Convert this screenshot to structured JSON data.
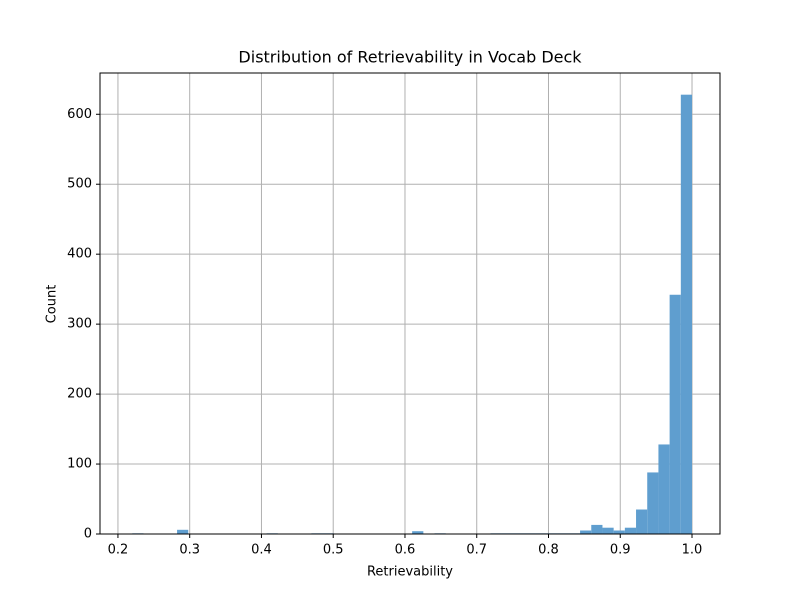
{
  "chart_data": {
    "type": "histogram",
    "title": "Distribution of Retrievability in Vocab Deck",
    "x_label": "Retrievability",
    "y_label": "Count",
    "color": "#5f9ecf",
    "grid": true,
    "bins": [
      0.22,
      0.2356,
      0.2512,
      0.2668,
      0.2824,
      0.298,
      0.3136,
      0.3292,
      0.3448,
      0.3604,
      0.376,
      0.3916,
      0.4072,
      0.4228,
      0.4384,
      0.454,
      0.4696,
      0.4852,
      0.5008,
      0.5164,
      0.532,
      0.5476,
      0.5632,
      0.5788,
      0.5944,
      0.61,
      0.6256,
      0.6412,
      0.6568,
      0.6724,
      0.688,
      0.7036,
      0.7192,
      0.7348,
      0.7504,
      0.766,
      0.7816,
      0.7972,
      0.8128,
      0.8284,
      0.844,
      0.8596,
      0.8752,
      0.8908,
      0.9064,
      0.922,
      0.9376,
      0.9532,
      0.9688,
      0.9844,
      1.0
    ],
    "values": [
      1,
      0,
      0,
      0,
      6,
      0,
      0,
      0,
      0,
      0,
      0,
      0,
      1,
      0,
      0,
      0,
      1,
      1,
      0,
      0,
      0,
      0,
      0,
      0,
      0,
      4,
      0,
      1,
      0,
      0,
      0,
      0,
      1,
      1,
      1,
      1,
      1,
      1,
      1,
      1,
      5,
      13,
      9,
      5,
      9,
      35,
      88,
      128,
      342,
      628
    ],
    "xlim": [
      0.175,
      1.039
    ],
    "ylim": [
      0,
      659
    ],
    "xticks": [
      0.2,
      0.3,
      0.4,
      0.5,
      0.6,
      0.7,
      0.8,
      0.9,
      {
        "value": 1,
        "label": "1.0"
      }
    ],
    "yticks": [
      0,
      100,
      200,
      300,
      400,
      500,
      600
    ]
  }
}
